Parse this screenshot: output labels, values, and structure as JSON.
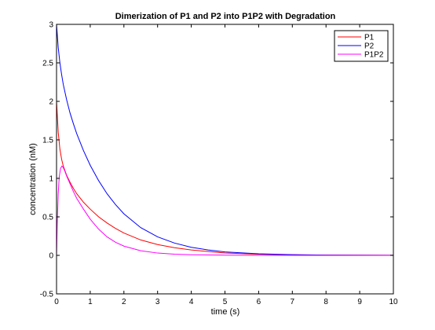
{
  "chart_data": {
    "type": "line",
    "title": "Dimerization of P1 and P2 into P1P2 with Degradation",
    "xlabel": "time (s)",
    "ylabel": "concentration (nM)",
    "xlim": [
      0,
      10
    ],
    "ylim": [
      -0.5,
      3
    ],
    "xticks": [
      0,
      1,
      2,
      3,
      4,
      5,
      6,
      7,
      8,
      9,
      10
    ],
    "xtick_labels": [
      "0",
      "1",
      "2",
      "3",
      "4",
      "5",
      "6",
      "7",
      "8",
      "9",
      "10"
    ],
    "yticks": [
      -0.5,
      0,
      0.5,
      1,
      1.5,
      2,
      2.5,
      3
    ],
    "ytick_labels": [
      "-0.5",
      "0",
      "0.5",
      "1",
      "1.5",
      "2",
      "2.5",
      "3"
    ],
    "grid": false,
    "legend_position": "top-right",
    "series": [
      {
        "name": "P1",
        "color": "#ff0000",
        "x": [
          0,
          0.05,
          0.1,
          0.15,
          0.2,
          0.3,
          0.4,
          0.5,
          0.6,
          0.8,
          1.0,
          1.25,
          1.5,
          1.75,
          2.0,
          2.5,
          3.0,
          3.5,
          4.0,
          4.5,
          5.0,
          6.0,
          7.0,
          8.0,
          9.0,
          10.0
        ],
        "y": [
          2.0,
          1.6,
          1.38,
          1.25,
          1.16,
          1.04,
          0.95,
          0.87,
          0.8,
          0.69,
          0.6,
          0.5,
          0.42,
          0.35,
          0.29,
          0.2,
          0.14,
          0.1,
          0.07,
          0.05,
          0.03,
          0.015,
          0.007,
          0.004,
          0.002,
          0.001
        ]
      },
      {
        "name": "P2",
        "color": "#0000ff",
        "x": [
          0,
          0.05,
          0.1,
          0.15,
          0.2,
          0.3,
          0.4,
          0.5,
          0.6,
          0.8,
          1.0,
          1.25,
          1.5,
          1.75,
          2.0,
          2.5,
          3.0,
          3.5,
          4.0,
          4.5,
          5.0,
          6.0,
          7.0,
          8.0,
          9.0,
          10.0
        ],
        "y": [
          3.0,
          2.7,
          2.5,
          2.35,
          2.22,
          2.02,
          1.85,
          1.71,
          1.58,
          1.36,
          1.17,
          0.97,
          0.8,
          0.66,
          0.54,
          0.36,
          0.24,
          0.16,
          0.105,
          0.07,
          0.045,
          0.02,
          0.009,
          0.004,
          0.002,
          0.001
        ]
      },
      {
        "name": "P1P2",
        "color": "#ff00ff",
        "x": [
          0,
          0.02,
          0.05,
          0.08,
          0.12,
          0.16,
          0.2,
          0.25,
          0.3,
          0.4,
          0.5,
          0.6,
          0.8,
          1.0,
          1.25,
          1.5,
          1.75,
          2.0,
          2.5,
          3.0,
          3.5,
          4.0,
          5.0,
          6.0,
          8.0,
          10.0
        ],
        "y": [
          0.0,
          0.4,
          0.8,
          1.02,
          1.13,
          1.16,
          1.14,
          1.09,
          1.03,
          0.93,
          0.83,
          0.74,
          0.6,
          0.47,
          0.34,
          0.24,
          0.17,
          0.12,
          0.06,
          0.03,
          0.015,
          0.008,
          0.003,
          0.001,
          0.0,
          0.0
        ]
      }
    ]
  }
}
